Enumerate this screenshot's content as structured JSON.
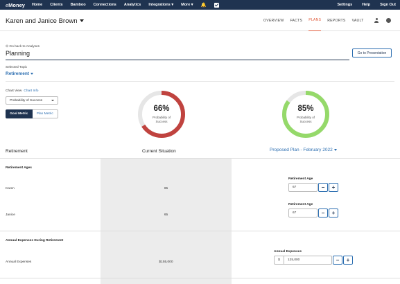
{
  "nav": {
    "logo_prefix": "e",
    "logo_main": "Money",
    "items": [
      "Home",
      "Clients",
      "Bamboo",
      "Connections",
      "Analytics",
      "Integrations ▾",
      "More ▾"
    ],
    "right_items": [
      "Settings",
      "Help",
      "Sign Out"
    ],
    "bell_glyph": "🔔"
  },
  "client": {
    "name": "Karen and Janice Brown",
    "tabs": [
      "OVERVIEW",
      "FACTS",
      "PLANS",
      "REPORTS",
      "VAULT"
    ],
    "active_tab": "PLANS"
  },
  "page": {
    "back_link": "⊙ Go back to Analyses",
    "title": "Planning",
    "presentation_button": "Go to Presentation",
    "selected_topic_label": "Selected Topic",
    "selected_topic": "Retirement"
  },
  "chart_controls": {
    "chart_view_label": "Chart View",
    "chart_info_link": "Chart Info",
    "select_value": "Probability of Success",
    "goal_metric": "Goal Metric",
    "plan_metric": "Plan Metric"
  },
  "gauges": {
    "current": {
      "percent_label": "66%",
      "fraction": 0.66,
      "sub1": "Probability of",
      "sub2": "Success",
      "color": "#c0433f"
    },
    "proposed": {
      "percent_label": "85%",
      "fraction": 0.85,
      "sub1": "Probability of",
      "sub2": "Success",
      "color": "#95d96a"
    },
    "track_color": "#e6e6e6"
  },
  "columns": {
    "left": "Retirement",
    "mid": "Current Situation",
    "right": "Proposed Plan - February 2022"
  },
  "retirement_ages": {
    "title": "Retirement Ages",
    "rows": [
      {
        "label": "Karen",
        "current": "65",
        "field_label": "Retirement Age",
        "proposed": "67"
      },
      {
        "label": "Janice",
        "current": "65",
        "field_label": "Retirement Age",
        "proposed": "67"
      }
    ]
  },
  "expenses": {
    "title": "Annual Expenses During Retirement",
    "row_label": "Annual Expenses",
    "current": "$155,000",
    "field_label": "Annual Expenses",
    "currency": "$",
    "proposed": "125,000"
  },
  "stepper": {
    "minus": "−",
    "plus": "+"
  },
  "colors": {
    "navy": "#1f3350",
    "accent_orange": "#e05a3a",
    "link_blue": "#2a6db0"
  }
}
